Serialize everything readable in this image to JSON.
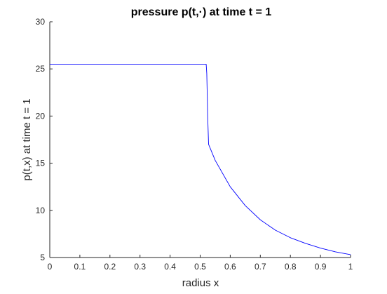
{
  "chart_data": {
    "type": "line",
    "title": "pressure p(t,·) at time  t = 1",
    "xlabel": "radius x",
    "ylabel": "p(t,x) at time t = 1",
    "xlim": [
      0,
      1
    ],
    "ylim": [
      5,
      30
    ],
    "xticks": [
      "0",
      "0.1",
      "0.2",
      "0.3",
      "0.4",
      "0.5",
      "0.6",
      "0.7",
      "0.8",
      "0.9",
      "1"
    ],
    "yticks": [
      "5",
      "10",
      "15",
      "20",
      "25",
      "30"
    ],
    "grid": false,
    "legend": "none",
    "series": [
      {
        "color": "#0000ff",
        "x": [
          0,
          0.1,
          0.2,
          0.3,
          0.4,
          0.5,
          0.52,
          0.522,
          0.525,
          0.528,
          0.55,
          0.6,
          0.65,
          0.7,
          0.75,
          0.8,
          0.85,
          0.9,
          0.95,
          1.0
        ],
        "y": [
          25.5,
          25.5,
          25.5,
          25.5,
          25.5,
          25.5,
          25.5,
          24.5,
          20.0,
          17.0,
          15.3,
          12.5,
          10.5,
          9.0,
          7.9,
          7.1,
          6.5,
          6.0,
          5.6,
          5.3
        ]
      }
    ]
  }
}
